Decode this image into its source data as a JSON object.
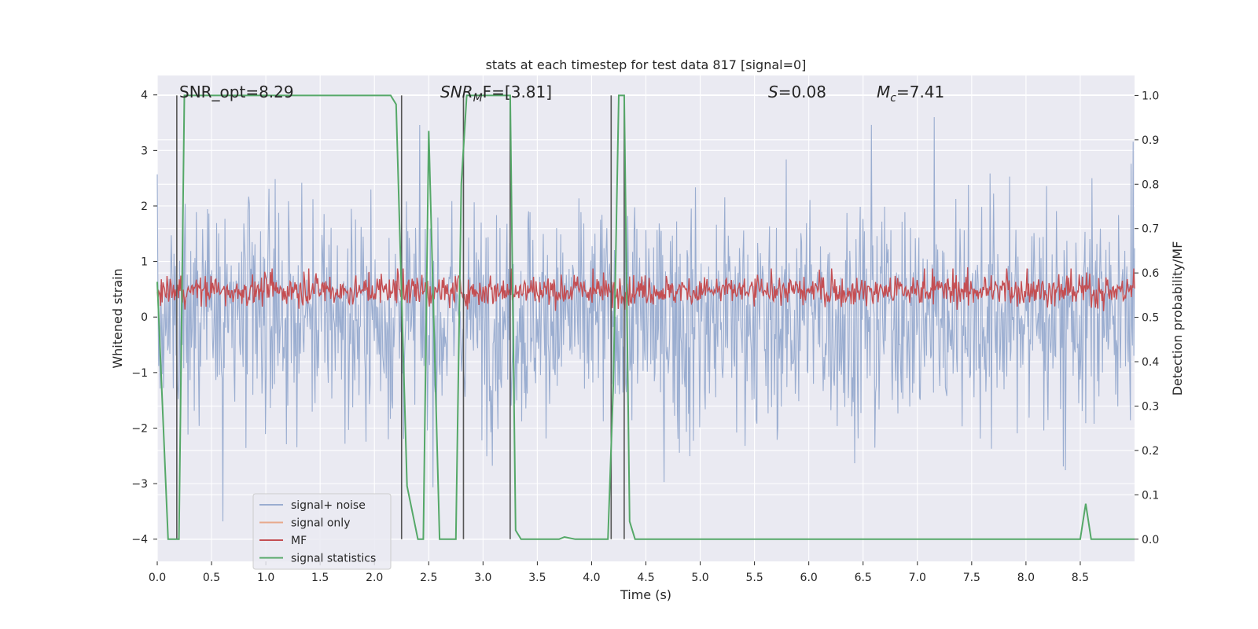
{
  "chart_data": {
    "type": "line",
    "title": "stats at each timestep for test data 817 [signal=0]",
    "xlabel": "Time (s)",
    "ylabel": "Whitened strain",
    "ylabel_right": "Detection probability/MF",
    "xlim": [
      0.0,
      9.0
    ],
    "ylim": [
      -4.4,
      4.35
    ],
    "ylim_right": [
      -0.05,
      1.045
    ],
    "grid": true,
    "legend_position": "lower-left",
    "x_ticks": [
      "0.0",
      "0.5",
      "1.0",
      "1.5",
      "2.0",
      "2.5",
      "3.0",
      "3.5",
      "4.0",
      "4.5",
      "5.0",
      "5.5",
      "6.0",
      "6.5",
      "7.0",
      "7.5",
      "8.0",
      "8.5"
    ],
    "y_ticks": [
      "−4",
      "−3",
      "−2",
      "−1",
      "0",
      "1",
      "2",
      "3",
      "4"
    ],
    "y_ticks_right": [
      "0.0",
      "0.1",
      "0.2",
      "0.3",
      "0.4",
      "0.5",
      "0.6",
      "0.7",
      "0.8",
      "0.9",
      "1.0"
    ],
    "annotations": {
      "snr_opt": "SNR_opt=8.29",
      "snr_mf_main": "SNR",
      "snr_mf_sub": "M",
      "snr_mf_rest": "F=[3.81]",
      "s_italic": "S",
      "s_rest": "=0.08",
      "mc_main": "M",
      "mc_sub": "c",
      "mc_rest": "=7.41"
    },
    "series": [
      {
        "name": "signal+ noise",
        "color": "#9aadd0",
        "axis": "left",
        "kind": "noise",
        "amplitude_range": [
          -3.7,
          3.6
        ]
      },
      {
        "name": "signal only",
        "color": "#e8a98c",
        "axis": "left",
        "values": []
      },
      {
        "name": "MF",
        "color": "#c44e52",
        "axis": "right",
        "kind": "noise",
        "range": [
          0.52,
          0.6
        ]
      },
      {
        "name": "signal statistics",
        "color": "#55a868",
        "axis": "right",
        "x": [
          0.0,
          0.1,
          0.12,
          0.2,
          0.25,
          0.3,
          2.15,
          2.2,
          2.3,
          2.4,
          2.45,
          2.5,
          2.6,
          2.65,
          2.75,
          2.8,
          2.85,
          2.9,
          3.25,
          3.3,
          3.35,
          3.4,
          3.7,
          3.75,
          3.85,
          4.15,
          4.2,
          4.25,
          4.3,
          4.35,
          4.4,
          8.5,
          8.55,
          8.6,
          8.65,
          9.0
        ],
        "values": [
          0.58,
          0.0,
          0.0,
          0.0,
          1.0,
          1.0,
          1.0,
          0.98,
          0.12,
          0.0,
          0.0,
          0.92,
          0.0,
          0.0,
          0.0,
          0.8,
          1.0,
          1.0,
          1.0,
          0.02,
          0.0,
          0.0,
          0.0,
          0.005,
          0.0,
          0.0,
          0.35,
          1.0,
          1.0,
          0.04,
          0.0,
          0.0,
          0.08,
          0.0,
          0.0,
          0.0
        ]
      }
    ],
    "vertical_lines_x": [
      0.18,
      2.25,
      2.82,
      3.25,
      4.18,
      4.3
    ],
    "legend_entries": [
      {
        "label": "signal+ noise",
        "color": "#9aadd0"
      },
      {
        "label": "signal only",
        "color": "#e8a98c"
      },
      {
        "label": "MF",
        "color": "#c44e52"
      },
      {
        "label": "signal statistics",
        "color": "#55a868"
      }
    ]
  },
  "colors": {
    "plot_background": "#eaeaf2",
    "text": "#262626",
    "vline": "#555555"
  }
}
